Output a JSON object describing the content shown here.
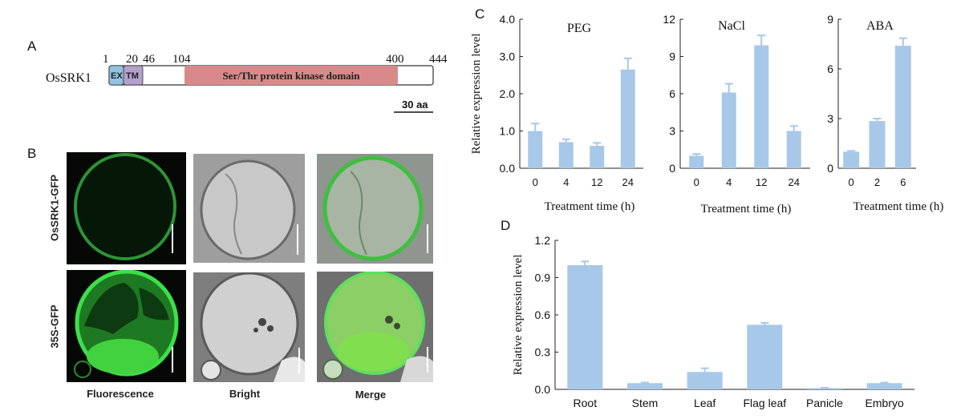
{
  "panels": {
    "A": "A",
    "B": "B",
    "C": "C",
    "D": "D"
  },
  "panel_a": {
    "protein": "OsSRK1",
    "positions": [
      "1",
      "20",
      "46",
      "104",
      "400",
      "444"
    ],
    "domains": [
      "EX",
      "TM",
      "Ser/Thr protein kinase domain"
    ],
    "scale_bar": "30 aa",
    "colors": {
      "ex": "#8fc3df",
      "tm": "#b3a0cc",
      "kinase": "#d88a8a",
      "outline": "#333333"
    }
  },
  "panel_b": {
    "rows": [
      "OsSRK1-GFP",
      "35S-GFP"
    ],
    "columns": [
      "Fluorescence",
      "Bright",
      "Merge"
    ],
    "colors": {
      "gfp": "#3ce04a",
      "background": "#0a0a0a",
      "bright": "#b9b9b9"
    }
  },
  "chart_data": [
    {
      "type": "bar",
      "title": "PEG",
      "categories": [
        "0",
        "4",
        "12",
        "24"
      ],
      "values": [
        1.0,
        0.7,
        0.6,
        2.65
      ],
      "errors": [
        0.2,
        0.08,
        0.08,
        0.3
      ],
      "ylim": [
        0,
        4.0
      ],
      "yticks": [
        "0.0",
        "1.0",
        "2.0",
        "3.0",
        "4.0"
      ],
      "ylabel": "Relative expression level",
      "xlabel": "Treatment time  (h)"
    },
    {
      "type": "bar",
      "title": "NaCl",
      "categories": [
        "0",
        "4",
        "12",
        "24"
      ],
      "values": [
        1.0,
        6.1,
        9.9,
        3.0
      ],
      "errors": [
        0.15,
        0.7,
        0.8,
        0.4
      ],
      "ylim": [
        0,
        12
      ],
      "yticks": [
        "0",
        "3",
        "6",
        "9",
        "12"
      ],
      "xlabel": "Treatment time  (h)"
    },
    {
      "type": "bar",
      "title": "ABA",
      "categories": [
        "0",
        "2",
        "6"
      ],
      "values": [
        1.0,
        2.85,
        7.4
      ],
      "errors": [
        0.05,
        0.15,
        0.45
      ],
      "ylim": [
        0,
        9
      ],
      "yticks": [
        "0",
        "3",
        "6",
        "9"
      ],
      "xlabel": "Treatment time  (h)"
    },
    {
      "type": "bar",
      "categories": [
        "Root",
        "Stem",
        "Leaf",
        "Flag leaf",
        "Panicle",
        "Embryo"
      ],
      "values": [
        1.0,
        0.05,
        0.14,
        0.52,
        0.01,
        0.05
      ],
      "errors": [
        0.03,
        0.005,
        0.03,
        0.015,
        0.003,
        0.005
      ],
      "ylim": [
        0,
        1.2
      ],
      "yticks": [
        "0.0",
        "0.3",
        "0.6",
        "0.9",
        "1.2"
      ],
      "ylabel": "Relative expression level"
    }
  ],
  "bar_color": "#a7c8e8"
}
